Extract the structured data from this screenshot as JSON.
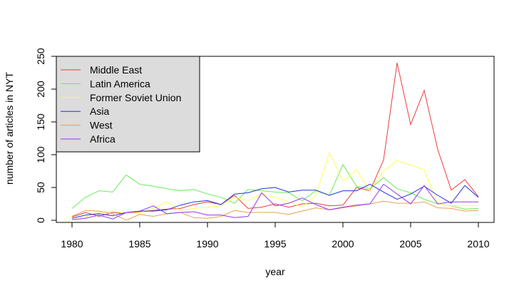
{
  "chart_data": {
    "type": "line",
    "title": "",
    "xlabel": "year",
    "ylabel": "number of articles in NYT",
    "xlim": [
      1980,
      2010
    ],
    "ylim": [
      0,
      250
    ],
    "x_ticks": [
      1980,
      1985,
      1990,
      1995,
      2000,
      2005,
      2010
    ],
    "y_ticks": [
      0,
      50,
      100,
      150,
      200,
      250
    ],
    "grid": false,
    "legend_position": "top-left",
    "x": [
      1980,
      1981,
      1982,
      1983,
      1984,
      1985,
      1986,
      1987,
      1988,
      1989,
      1990,
      1991,
      1992,
      1993,
      1994,
      1995,
      1996,
      1997,
      1998,
      1999,
      2000,
      2001,
      2002,
      2003,
      2004,
      2005,
      2006,
      2007,
      2008,
      2009,
      2010
    ],
    "series": [
      {
        "name": "Middle East",
        "color": "#ee3b3b",
        "values": [
          5,
          12,
          6,
          12,
          10,
          13,
          15,
          17,
          18,
          24,
          28,
          24,
          38,
          18,
          20,
          25,
          20,
          25,
          26,
          22,
          23,
          50,
          45,
          92,
          240,
          146,
          198,
          108,
          46,
          62,
          36
        ]
      },
      {
        "name": "Latin America",
        "color": "#66ee55",
        "values": [
          18,
          35,
          45,
          43,
          69,
          55,
          52,
          48,
          45,
          47,
          40,
          35,
          26,
          47,
          45,
          43,
          42,
          30,
          45,
          38,
          85,
          52,
          48,
          65,
          48,
          42,
          32,
          25,
          22,
          17,
          18
        ]
      },
      {
        "name": "Former Soviet Union",
        "color": "#ffff55",
        "values": [
          3,
          5,
          12,
          14,
          10,
          12,
          18,
          28,
          15,
          18,
          20,
          22,
          35,
          30,
          40,
          35,
          28,
          20,
          38,
          103,
          60,
          77,
          45,
          75,
          91,
          84,
          77,
          25,
          22,
          23,
          22
        ]
      },
      {
        "name": "Asia",
        "color": "#2233dd",
        "values": [
          3,
          8,
          10,
          7,
          12,
          14,
          14,
          16,
          23,
          28,
          30,
          24,
          40,
          42,
          48,
          50,
          43,
          46,
          46,
          38,
          45,
          45,
          55,
          43,
          32,
          40,
          52,
          38,
          26,
          53,
          35
        ]
      },
      {
        "name": "West",
        "color": "#e8a050",
        "values": [
          6,
          15,
          14,
          10,
          0,
          9,
          6,
          10,
          12,
          4,
          3,
          6,
          15,
          12,
          12,
          12,
          9,
          14,
          19,
          16,
          19,
          22,
          25,
          29,
          26,
          26,
          28,
          19,
          18,
          14,
          15
        ]
      },
      {
        "name": "Africa",
        "color": "#9933ee",
        "values": [
          1,
          3,
          8,
          2,
          12,
          14,
          22,
          10,
          12,
          13,
          8,
          8,
          4,
          6,
          42,
          22,
          26,
          34,
          24,
          16,
          20,
          23,
          25,
          55,
          40,
          25,
          53,
          25,
          28,
          28,
          28
        ]
      }
    ]
  }
}
